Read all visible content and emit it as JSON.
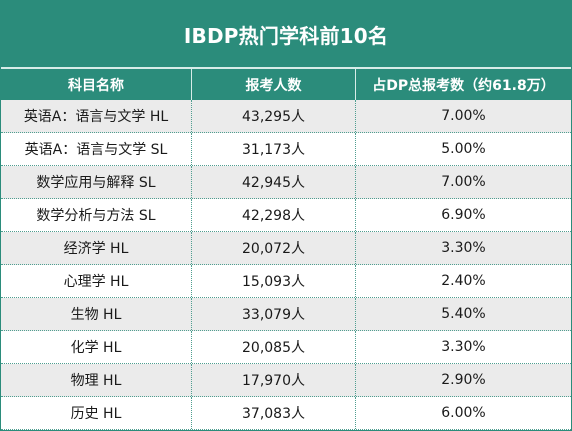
{
  "title": "IBDP热门学科前10名",
  "headers": {
    "subject": "科目名称",
    "candidates": "报考人数",
    "share": "占DP总报考数（约61.8万）"
  },
  "rows": [
    {
      "subject": "英语A：语言与文学 HL",
      "candidates": "43,295人",
      "share": "7.00%"
    },
    {
      "subject": "英语A：语言与文学 SL",
      "candidates": "31,173人",
      "share": "5.00%"
    },
    {
      "subject": "数学应用与解释 SL",
      "candidates": "42,945人",
      "share": "7.00%"
    },
    {
      "subject": "数学分析与方法 SL",
      "candidates": "42,298人",
      "share": "6.90%"
    },
    {
      "subject": "经济学 HL",
      "candidates": "20,072人",
      "share": "3.30%"
    },
    {
      "subject": "心理学 HL",
      "candidates": "15,093人",
      "share": "2.40%"
    },
    {
      "subject": "生物 HL",
      "candidates": "33,079人",
      "share": "5.40%"
    },
    {
      "subject": "化学 HL",
      "candidates": "20,085人",
      "share": "3.30%"
    },
    {
      "subject": "物理 HL",
      "candidates": "17,970人",
      "share": "2.90%"
    },
    {
      "subject": "历史 HL",
      "candidates": "37,083人",
      "share": "6.00%"
    }
  ],
  "colors": {
    "accent": "#2b8c7b",
    "row_stripe": "#ebebeb",
    "row_plain": "#ffffff"
  }
}
